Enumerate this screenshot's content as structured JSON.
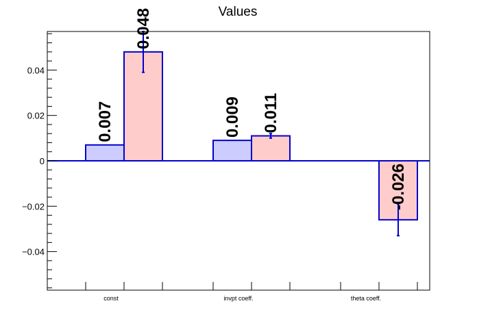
{
  "chart_data": {
    "type": "bar",
    "title": "Values",
    "xlabel": "",
    "ylabel": "",
    "categories": [
      "const",
      "invpt coeff.",
      "theta coeff."
    ],
    "ylim": [
      -0.057,
      0.057
    ],
    "y_ticks": [
      -0.04,
      -0.02,
      0,
      0.02,
      0.04
    ],
    "y_tick_labels": [
      "−0.04",
      "−0.02",
      "0",
      "0.02",
      "0.04"
    ],
    "grid": false,
    "legend": "none",
    "series": [
      {
        "values": [
          0.007,
          0.009,
          null
        ],
        "labels": [
          "0.007",
          "0.009",
          ""
        ],
        "errors": [
          null,
          null,
          null
        ],
        "fill_color": "#ccccff",
        "edge_color": "#0000cc"
      },
      {
        "values": [
          0.048,
          0.011,
          -0.026
        ],
        "labels": [
          "0.048",
          "0.011",
          "-0.026"
        ],
        "errors": [
          0.009,
          0.001,
          0.007
        ],
        "fill_color": "#ffcccc",
        "edge_color": "#0000cc"
      }
    ],
    "colors": {
      "axis": "#000000",
      "zero_line": "#0000cc",
      "error_bar": "#0000cc"
    }
  }
}
